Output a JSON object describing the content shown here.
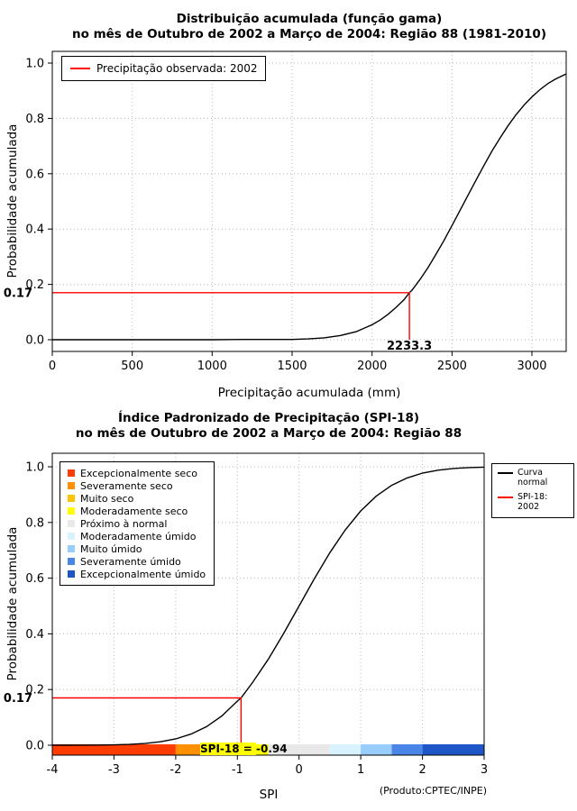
{
  "style": {
    "grid_color": "#b9b9b9",
    "axis_color": "#000000",
    "background": "#ffffff"
  },
  "chart_data": [
    {
      "type": "line",
      "title": "Distribuição acumulada (função gama)",
      "subtitle": "no mês de Outubro de 2002 a Março de 2004: Região 88 (1981-2010)",
      "xlabel": "Precipitação acumulada (mm)",
      "ylabel": "Probabilidade acumulada",
      "xlim": [
        0,
        3214
      ],
      "ylim": [
        0,
        1
      ],
      "xticks": [
        0,
        500,
        1000,
        1500,
        2000,
        2500,
        3000
      ],
      "yticks": [
        0,
        0.2,
        0.4,
        0.6,
        0.8,
        1
      ],
      "grid": true,
      "legend": [
        {
          "label": "Precipitação observada: 2002",
          "color": "#ff0000"
        }
      ],
      "marker": {
        "x": 2233.3,
        "y": 0.17,
        "x_label": "2233.3",
        "y_label": "0.17",
        "color": "#ff0000"
      },
      "series": [
        {
          "color": "#000000",
          "points": [
            [
              0,
              0
            ],
            [
              250,
              0
            ],
            [
              500,
              0
            ],
            [
              750,
              0
            ],
            [
              1000,
              0
            ],
            [
              1200,
              0.001
            ],
            [
              1400,
              0.001
            ],
            [
              1500,
              0.001
            ],
            [
              1600,
              0.003
            ],
            [
              1700,
              0.007
            ],
            [
              1800,
              0.015
            ],
            [
              1900,
              0.029
            ],
            [
              2000,
              0.054
            ],
            [
              2050,
              0.071
            ],
            [
              2100,
              0.092
            ],
            [
              2150,
              0.117
            ],
            [
              2200,
              0.145
            ],
            [
              2233.3,
              0.17
            ],
            [
              2250,
              0.179
            ],
            [
              2300,
              0.218
            ],
            [
              2350,
              0.261
            ],
            [
              2400,
              0.309
            ],
            [
              2450,
              0.359
            ],
            [
              2500,
              0.413
            ],
            [
              2550,
              0.467
            ],
            [
              2600,
              0.522
            ],
            [
              2650,
              0.577
            ],
            [
              2700,
              0.63
            ],
            [
              2750,
              0.682
            ],
            [
              2800,
              0.729
            ],
            [
              2850,
              0.773
            ],
            [
              2900,
              0.813
            ],
            [
              2950,
              0.848
            ],
            [
              3000,
              0.878
            ],
            [
              3050,
              0.904
            ],
            [
              3100,
              0.926
            ],
            [
              3150,
              0.943
            ],
            [
              3200,
              0.957
            ],
            [
              3214,
              0.961
            ]
          ]
        }
      ]
    },
    {
      "type": "line",
      "title": "Índice Padronizado de Precipitação (SPI-18)",
      "subtitle": "no mês de Outubro de 2002 a Março de 2004: Região 88",
      "xlabel": "SPI",
      "ylabel": "Probabilidade acumulada",
      "xlim": [
        -4,
        3
      ],
      "ylim": [
        0,
        1
      ],
      "xticks": [
        -4,
        -3,
        -2,
        -1,
        0,
        1,
        2,
        3
      ],
      "yticks": [
        0,
        0.2,
        0.4,
        0.6,
        0.8,
        1
      ],
      "grid": true,
      "legend_right": [
        {
          "label": "Curva normal",
          "color": "#000000"
        },
        {
          "label": "SPI-18: 2002",
          "color": "#ff0000"
        }
      ],
      "categories": [
        {
          "label": "Excepcionalmente seco",
          "color": "#ff3d00"
        },
        {
          "label": "Severamente seco",
          "color": "#ff9100"
        },
        {
          "label": "Muito seco",
          "color": "#ffc400"
        },
        {
          "label": "Moderadamente seco",
          "color": "#ffff00"
        },
        {
          "label": "Próximo à normal",
          "color": "#e8e8e8"
        },
        {
          "label": "Moderadamente úmido",
          "color": "#d9f2ff"
        },
        {
          "label": "Muito úmido",
          "color": "#99ccff"
        },
        {
          "label": "Severamente úmido",
          "color": "#4a86e8"
        },
        {
          "label": "Excepcionalmente úmido",
          "color": "#1e56c8"
        }
      ],
      "category_bar_boundaries": [
        -4,
        -2,
        -1.5,
        -1,
        -0.5,
        0.5,
        1,
        1.5,
        2,
        3
      ],
      "marker": {
        "x": -0.94,
        "y": 0.17,
        "y_label": "0.17",
        "label_prefix": "SPI-18 = ",
        "label_value": "-0.94",
        "label_highlight": "#ffff00",
        "color": "#ff0000"
      },
      "annotation": "(Produto:CPTEC/INPE)",
      "series": [
        {
          "color": "#000000",
          "points": [
            [
              -4,
              0.0
            ],
            [
              -3.75,
              0.0001
            ],
            [
              -3.5,
              0.0002
            ],
            [
              -3.25,
              0.0006
            ],
            [
              -3,
              0.0013
            ],
            [
              -2.75,
              0.003
            ],
            [
              -2.5,
              0.0062
            ],
            [
              -2.25,
              0.0122
            ],
            [
              -2,
              0.0228
            ],
            [
              -1.75,
              0.0401
            ],
            [
              -1.5,
              0.0668
            ],
            [
              -1.25,
              0.1056
            ],
            [
              -1,
              0.1587
            ],
            [
              -0.94,
              0.17
            ],
            [
              -0.75,
              0.2266
            ],
            [
              -0.5,
              0.3085
            ],
            [
              -0.25,
              0.4013
            ],
            [
              0,
              0.5
            ],
            [
              0.25,
              0.5987
            ],
            [
              0.5,
              0.6915
            ],
            [
              0.75,
              0.7734
            ],
            [
              1,
              0.8413
            ],
            [
              1.25,
              0.8944
            ],
            [
              1.5,
              0.9332
            ],
            [
              1.75,
              0.9599
            ],
            [
              2,
              0.9772
            ],
            [
              2.25,
              0.9878
            ],
            [
              2.5,
              0.9938
            ],
            [
              2.75,
              0.997
            ],
            [
              3,
              0.9987
            ]
          ]
        }
      ]
    }
  ]
}
